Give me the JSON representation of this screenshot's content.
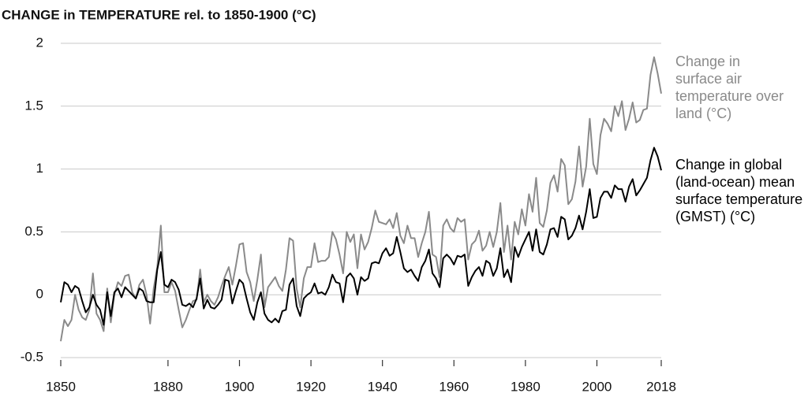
{
  "chart_data": {
    "type": "line",
    "title": "CHANGE in TEMPERATURE rel. to 1850-1900 (°C)",
    "x": [
      1850,
      1851,
      1852,
      1853,
      1854,
      1855,
      1856,
      1857,
      1858,
      1859,
      1860,
      1861,
      1862,
      1863,
      1864,
      1865,
      1866,
      1867,
      1868,
      1869,
      1870,
      1871,
      1872,
      1873,
      1874,
      1875,
      1876,
      1877,
      1878,
      1879,
      1880,
      1881,
      1882,
      1883,
      1884,
      1885,
      1886,
      1887,
      1888,
      1889,
      1890,
      1891,
      1892,
      1893,
      1894,
      1895,
      1896,
      1897,
      1898,
      1899,
      1900,
      1901,
      1902,
      1903,
      1904,
      1905,
      1906,
      1907,
      1908,
      1909,
      1910,
      1911,
      1912,
      1913,
      1914,
      1915,
      1916,
      1917,
      1918,
      1919,
      1920,
      1921,
      1922,
      1923,
      1924,
      1925,
      1926,
      1927,
      1928,
      1929,
      1930,
      1931,
      1932,
      1933,
      1934,
      1935,
      1936,
      1937,
      1938,
      1939,
      1940,
      1941,
      1942,
      1943,
      1944,
      1945,
      1946,
      1947,
      1948,
      1949,
      1950,
      1951,
      1952,
      1953,
      1954,
      1955,
      1956,
      1957,
      1958,
      1959,
      1960,
      1961,
      1962,
      1963,
      1964,
      1965,
      1966,
      1967,
      1968,
      1969,
      1970,
      1971,
      1972,
      1973,
      1974,
      1975,
      1976,
      1977,
      1978,
      1979,
      1980,
      1981,
      1982,
      1983,
      1984,
      1985,
      1986,
      1987,
      1988,
      1989,
      1990,
      1991,
      1992,
      1993,
      1994,
      1995,
      1996,
      1997,
      1998,
      1999,
      2000,
      2001,
      2002,
      2003,
      2004,
      2005,
      2006,
      2007,
      2008,
      2009,
      2010,
      2011,
      2012,
      2013,
      2014,
      2015,
      2016,
      2017,
      2018
    ],
    "series": [
      {
        "name": "Change in surface air temperature over land (°C)",
        "color": "#8a8a8a",
        "values": [
          -0.37,
          -0.2,
          -0.25,
          -0.2,
          0.0,
          -0.12,
          -0.18,
          -0.2,
          -0.12,
          0.17,
          -0.15,
          -0.2,
          -0.29,
          0.05,
          -0.22,
          0.0,
          0.1,
          0.07,
          0.15,
          0.16,
          0.02,
          -0.03,
          0.08,
          0.12,
          0.0,
          -0.23,
          0.05,
          0.22,
          0.55,
          0.02,
          0.02,
          0.1,
          0.03,
          -0.12,
          -0.26,
          -0.2,
          -0.12,
          -0.05,
          -0.04,
          0.2,
          -0.06,
          0.0,
          -0.05,
          -0.08,
          -0.02,
          0.07,
          0.15,
          0.22,
          0.08,
          0.23,
          0.4,
          0.41,
          0.18,
          0.1,
          -0.05,
          0.12,
          0.32,
          -0.1,
          0.06,
          0.1,
          0.14,
          0.07,
          0.03,
          0.2,
          0.45,
          0.43,
          0.05,
          -0.1,
          0.13,
          0.22,
          0.22,
          0.41,
          0.26,
          0.27,
          0.27,
          0.3,
          0.5,
          0.44,
          0.32,
          0.17,
          0.5,
          0.42,
          0.48,
          0.21,
          0.48,
          0.36,
          0.42,
          0.53,
          0.67,
          0.58,
          0.57,
          0.56,
          0.6,
          0.53,
          0.65,
          0.47,
          0.41,
          0.55,
          0.45,
          0.45,
          0.3,
          0.41,
          0.5,
          0.66,
          0.32,
          0.3,
          0.14,
          0.55,
          0.6,
          0.53,
          0.5,
          0.61,
          0.58,
          0.6,
          0.28,
          0.4,
          0.43,
          0.51,
          0.35,
          0.39,
          0.5,
          0.38,
          0.5,
          0.73,
          0.34,
          0.55,
          0.28,
          0.58,
          0.48,
          0.68,
          0.55,
          0.8,
          0.66,
          0.93,
          0.57,
          0.54,
          0.67,
          0.89,
          0.95,
          0.82,
          1.08,
          1.03,
          0.72,
          0.76,
          0.9,
          1.18,
          0.86,
          1.02,
          1.4,
          1.04,
          0.96,
          1.27,
          1.4,
          1.36,
          1.3,
          1.5,
          1.42,
          1.54,
          1.31,
          1.4,
          1.53,
          1.37,
          1.39,
          1.47,
          1.48,
          1.75,
          1.89,
          1.76,
          1.6
        ]
      },
      {
        "name": "Change in global (land-ocean) mean surface temperature (GMST) (°C)",
        "color": "#000000",
        "values": [
          -0.06,
          0.1,
          0.08,
          0.02,
          0.07,
          0.05,
          -0.05,
          -0.14,
          -0.1,
          0.0,
          -0.08,
          -0.12,
          -0.24,
          0.02,
          -0.17,
          0.02,
          0.05,
          -0.02,
          0.06,
          0.03,
          0.0,
          -0.03,
          0.05,
          0.03,
          -0.05,
          -0.06,
          -0.06,
          0.2,
          0.34,
          0.08,
          0.06,
          0.12,
          0.1,
          0.04,
          -0.08,
          -0.09,
          -0.07,
          -0.1,
          -0.03,
          0.13,
          -0.11,
          -0.04,
          -0.1,
          -0.11,
          -0.08,
          -0.04,
          0.12,
          0.11,
          -0.07,
          0.03,
          0.12,
          0.09,
          -0.03,
          -0.14,
          -0.2,
          -0.06,
          0.02,
          -0.15,
          -0.2,
          -0.22,
          -0.19,
          -0.22,
          -0.13,
          -0.12,
          0.08,
          0.13,
          -0.09,
          -0.17,
          -0.03,
          0.0,
          0.02,
          0.09,
          0.01,
          0.02,
          0.0,
          0.06,
          0.16,
          0.1,
          0.09,
          -0.06,
          0.14,
          0.17,
          0.13,
          0.0,
          0.14,
          0.11,
          0.13,
          0.25,
          0.26,
          0.25,
          0.33,
          0.37,
          0.31,
          0.33,
          0.46,
          0.34,
          0.21,
          0.18,
          0.2,
          0.15,
          0.11,
          0.22,
          0.27,
          0.36,
          0.17,
          0.13,
          0.06,
          0.29,
          0.32,
          0.29,
          0.24,
          0.31,
          0.3,
          0.32,
          0.07,
          0.14,
          0.19,
          0.22,
          0.15,
          0.27,
          0.25,
          0.15,
          0.21,
          0.37,
          0.14,
          0.2,
          0.1,
          0.38,
          0.3,
          0.38,
          0.44,
          0.5,
          0.35,
          0.52,
          0.34,
          0.32,
          0.4,
          0.52,
          0.53,
          0.46,
          0.62,
          0.6,
          0.44,
          0.47,
          0.53,
          0.63,
          0.52,
          0.66,
          0.84,
          0.61,
          0.62,
          0.77,
          0.82,
          0.82,
          0.77,
          0.87,
          0.84,
          0.84,
          0.74,
          0.86,
          0.92,
          0.79,
          0.83,
          0.88,
          0.93,
          1.07,
          1.17,
          1.1,
          0.99
        ]
      }
    ],
    "xlim": [
      1850,
      2018
    ],
    "xticks": [
      1850,
      1880,
      1900,
      1920,
      1940,
      1960,
      1980,
      2000,
      2018
    ],
    "ylim": [
      -0.5,
      2
    ],
    "yticks": [
      -0.5,
      0,
      0.5,
      1,
      1.5,
      2
    ],
    "grid": true
  }
}
